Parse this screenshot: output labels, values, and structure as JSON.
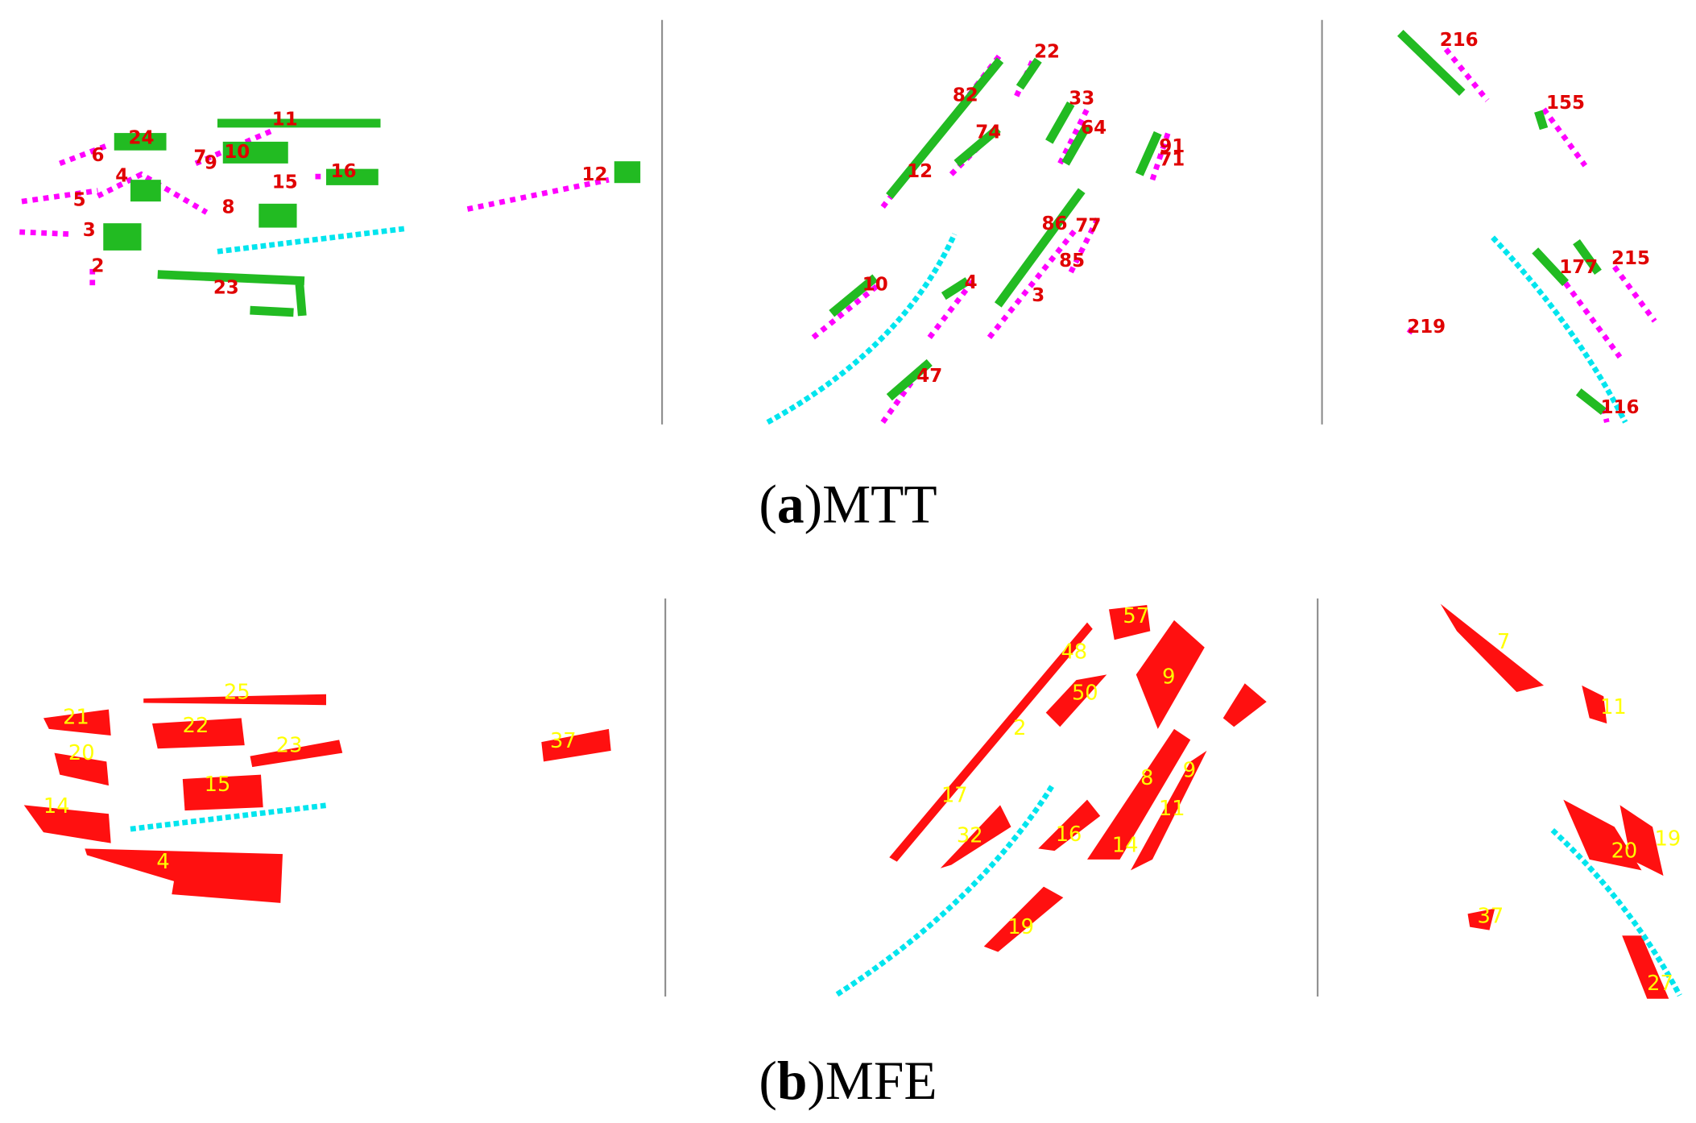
{
  "panel_a": {
    "left": [
      "24",
      "6",
      "7",
      "9",
      "10",
      "11",
      "4",
      "15",
      "16",
      "5",
      "8",
      "3",
      "2",
      "23",
      "12"
    ],
    "middle": [
      "22",
      "82",
      "33",
      "74",
      "64",
      "91",
      "71",
      "12",
      "86",
      "77",
      "85",
      "10",
      "4",
      "3",
      "47"
    ],
    "right": [
      "216",
      "155",
      "215",
      "177",
      "219",
      "116"
    ],
    "caption": {
      "open": "(",
      "letter": "a",
      "close": ")",
      "method": "MTT"
    }
  },
  "panel_b": {
    "left": [
      "25",
      "21",
      "22",
      "20",
      "23",
      "15",
      "14",
      "4",
      "37"
    ],
    "middle": [
      "57",
      "48",
      "50",
      "9",
      "2",
      "8",
      "9",
      "11",
      "17",
      "32",
      "16",
      "14",
      "19"
    ],
    "right": [
      "7",
      "11",
      "20",
      "19",
      "37",
      "27"
    ],
    "caption": {
      "open": "(",
      "letter": "b",
      "close": ")",
      "method": "MFE"
    }
  }
}
